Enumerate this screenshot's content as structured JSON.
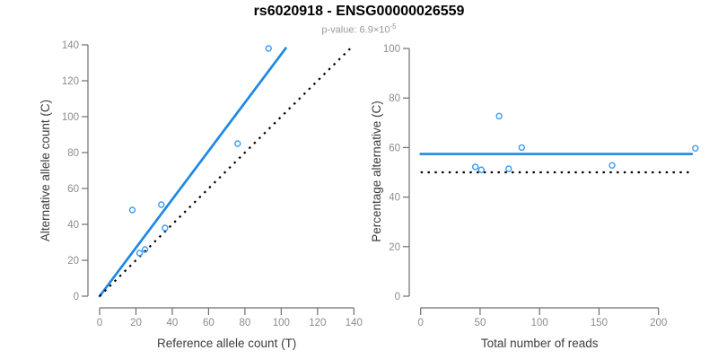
{
  "title": "rs6020918 - ENSG00000026559",
  "subtitle": {
    "prefix": "p-value: 6.9×10",
    "exponent": "-5"
  },
  "colors": {
    "accent_blue": "#1E88E5",
    "point_blue": "#3B9CF5",
    "line_black": "#000000",
    "axis_gray": "#6E6E6E",
    "tick_label_gray": "#8C8C8C",
    "axis_title_gray": "#3D3D3D",
    "title_black": "#000000",
    "subtitle_gray": "#999999"
  },
  "chart_data": [
    {
      "type": "scatter",
      "name": "allele-counts-panel",
      "xlabel": "Reference allele count (T)",
      "ylabel": "Alternative allele count (C)",
      "xlim": [
        0,
        140
      ],
      "ylim": [
        0,
        140
      ],
      "xticks": [
        0,
        20,
        40,
        60,
        80,
        100,
        120,
        140
      ],
      "yticks": [
        0,
        20,
        40,
        60,
        80,
        100,
        120,
        140
      ],
      "grid": false,
      "points": [
        {
          "x": 18,
          "y": 48
        },
        {
          "x": 22,
          "y": 24
        },
        {
          "x": 25,
          "y": 26
        },
        {
          "x": 34,
          "y": 51
        },
        {
          "x": 36,
          "y": 38
        },
        {
          "x": 76,
          "y": 85
        },
        {
          "x": 93,
          "y": 138
        }
      ],
      "lines": [
        {
          "name": "regression-line",
          "kind": "abline",
          "slope": 1.348,
          "intercept": 0,
          "x_start": 0,
          "x_end": 102.5,
          "style": "solid",
          "color_key": "accent_blue"
        },
        {
          "name": "identity-line",
          "kind": "abline",
          "slope": 1,
          "intercept": 0,
          "x_start": 0,
          "x_end": 138,
          "style": "dotted",
          "color_key": "line_black"
        }
      ]
    },
    {
      "type": "scatter",
      "name": "percentage-panel",
      "xlabel": "Total number of reads",
      "ylabel": "Percentage alternative (C)",
      "xlim": [
        0,
        231
      ],
      "ylim": [
        0,
        100
      ],
      "xticks": [
        0,
        50,
        100,
        150,
        200
      ],
      "yticks": [
        0,
        20,
        40,
        60,
        80,
        100
      ],
      "grid": false,
      "points": [
        {
          "x": 46,
          "y": 52.2
        },
        {
          "x": 51,
          "y": 51.0
        },
        {
          "x": 66,
          "y": 72.7
        },
        {
          "x": 74,
          "y": 51.4
        },
        {
          "x": 85,
          "y": 60.0
        },
        {
          "x": 161,
          "y": 52.8
        },
        {
          "x": 231,
          "y": 59.7
        }
      ],
      "lines": [
        {
          "name": "mean-percentage-line",
          "kind": "hline",
          "y": 57.4,
          "x_start": 0,
          "x_end": 228,
          "style": "solid",
          "color_key": "accent_blue"
        },
        {
          "name": "fifty-percent-line",
          "kind": "hline",
          "y": 50,
          "x_start": 0,
          "x_end": 226,
          "style": "dotted",
          "color_key": "line_black"
        }
      ]
    }
  ]
}
